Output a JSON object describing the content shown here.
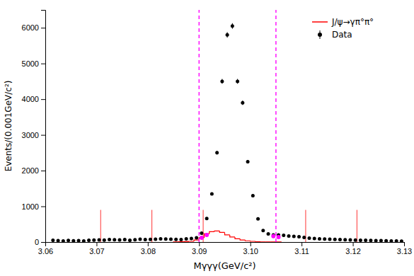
{
  "chart_data": {
    "type": "scatter",
    "xlabel": "Mγγγ(GeV/c²)",
    "ylabel": "Events/(0.001GeV/c²)",
    "xlim": [
      3.06,
      3.13
    ],
    "ylim": [
      0,
      6500
    ],
    "xticks": [
      3.06,
      3.07,
      3.08,
      3.09,
      {
        "value": 3.1,
        "label": "3.10"
      },
      3.11,
      3.12,
      3.13
    ],
    "yticks": [
      0,
      1000,
      2000,
      3000,
      4000,
      5000,
      6000
    ],
    "grid": false,
    "legend": "upper right",
    "series": [
      {
        "name": "J/ψ→γπ°π°",
        "type": "step",
        "color": "red",
        "bins": [
          3.085,
          3.086,
          3.087,
          3.088,
          3.089,
          3.09,
          3.091,
          3.092,
          3.093,
          3.094,
          3.095,
          3.096,
          3.097,
          3.098,
          3.099,
          3.1,
          3.101,
          3.102,
          3.103,
          3.104,
          3.105,
          3.106
        ],
        "values": [
          5,
          8,
          12,
          20,
          55,
          120,
          230,
          290,
          310,
          270,
          200,
          140,
          90,
          55,
          35,
          20,
          10,
          5,
          3,
          2,
          1
        ]
      },
      {
        "type": "spike",
        "color": "red",
        "x": [
          3.0708,
          3.0808,
          3.0908,
          3.1108,
          3.1208
        ],
        "values": [
          900,
          900,
          900,
          900,
          900
        ]
      },
      {
        "name": "Data",
        "type": "scatter",
        "color": "black",
        "marker": "circle",
        "x": [
          3.0615,
          3.0625,
          3.0635,
          3.0645,
          3.0655,
          3.0665,
          3.0675,
          3.0685,
          3.0695,
          3.0705,
          3.0715,
          3.0725,
          3.0735,
          3.0745,
          3.0755,
          3.0765,
          3.0775,
          3.0785,
          3.0795,
          3.0805,
          3.0815,
          3.0825,
          3.0835,
          3.0845,
          3.0855,
          3.0865,
          3.0875,
          3.0885,
          3.0895,
          3.0905,
          3.0915,
          3.0925,
          3.0935,
          3.0945,
          3.0955,
          3.0965,
          3.0975,
          3.0985,
          3.0995,
          3.1005,
          3.1015,
          3.1025,
          3.1035,
          3.1045,
          3.1055,
          3.1065,
          3.1075,
          3.1085,
          3.1095,
          3.1105,
          3.1115,
          3.1125,
          3.1135,
          3.1145,
          3.1155,
          3.1165,
          3.1175,
          3.1185,
          3.1195,
          3.1205,
          3.1215,
          3.1225,
          3.1235,
          3.1245,
          3.1255,
          3.1265,
          3.1275,
          3.1285,
          3.1295
        ],
        "values": [
          50,
          40,
          30,
          45,
          35,
          40,
          30,
          50,
          55,
          60,
          55,
          70,
          65,
          60,
          70,
          50,
          65,
          80,
          70,
          75,
          80,
          90,
          85,
          80,
          75,
          70,
          90,
          100,
          120,
          250,
          660,
          1350,
          2500,
          4500,
          5800,
          6050,
          4500,
          3900,
          2250,
          1300,
          650,
          320,
          230,
          200,
          200,
          190,
          170,
          160,
          150,
          130,
          110,
          100,
          90,
          85,
          80,
          75,
          70,
          65,
          60,
          55,
          50,
          50,
          45,
          40,
          40,
          35,
          30,
          30,
          25
        ],
        "errors": [
          7,
          6,
          5,
          7,
          6,
          6,
          5,
          7,
          7,
          8,
          7,
          8,
          8,
          8,
          8,
          7,
          8,
          9,
          8,
          9,
          9,
          9,
          9,
          9,
          9,
          8,
          9,
          10,
          11,
          16,
          26,
          37,
          50,
          67,
          76,
          78,
          67,
          62,
          47,
          36,
          25,
          18,
          15,
          14,
          14,
          14,
          13,
          13,
          12,
          11,
          10,
          10,
          9,
          9,
          9,
          9,
          8,
          8,
          8,
          7,
          7,
          7,
          7,
          6,
          6,
          6,
          5,
          5,
          5
        ]
      },
      {
        "type": "scatter",
        "color": "magenta",
        "marker": "circle",
        "x": [
          3.0905,
          3.0915,
          3.1045,
          3.1055
        ],
        "values": [
          120,
          200,
          165,
          140
        ]
      },
      {
        "type": "vline",
        "color": "magenta",
        "line_style": "dashed",
        "x": [
          3.09,
          3.105
        ]
      }
    ]
  }
}
